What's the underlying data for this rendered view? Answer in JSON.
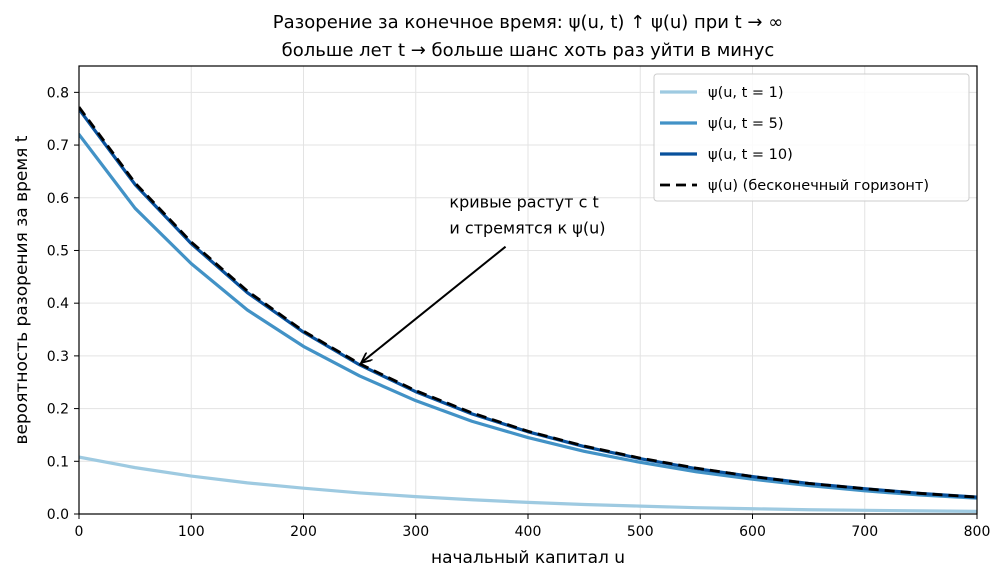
{
  "chart_data": {
    "type": "line",
    "title_line1": "Разорение за конечное время: ψ(u, t) ↑ ψ(u) при t → ∞",
    "title_line2": "больше лет t → больше шанс хоть раз уйти в минус",
    "xlabel": "начальный капитал u",
    "ylabel": "вероятность разорения за время t",
    "xlim": [
      0,
      800
    ],
    "ylim": [
      0,
      0.85
    ],
    "xticks": [
      0,
      100,
      200,
      300,
      400,
      500,
      600,
      700,
      800
    ],
    "yticks": [
      0.0,
      0.1,
      0.2,
      0.3,
      0.4,
      0.5,
      0.6,
      0.7,
      0.8
    ],
    "grid": true,
    "legend_position": "top-right",
    "x": [
      0,
      50,
      100,
      150,
      200,
      250,
      300,
      350,
      400,
      450,
      500,
      550,
      600,
      650,
      700,
      750,
      800
    ],
    "series": [
      {
        "name": "ψ(u, t = 1)",
        "color": "#9ecae1",
        "dash": "solid",
        "values": [
          0.108,
          0.088,
          0.072,
          0.059,
          0.049,
          0.04,
          0.033,
          0.027,
          0.022,
          0.018,
          0.015,
          0.012,
          0.01,
          0.008,
          0.007,
          0.006,
          0.005
        ]
      },
      {
        "name": "ψ(u, t = 5)",
        "color": "#4292c6",
        "dash": "solid",
        "values": [
          0.72,
          0.58,
          0.475,
          0.387,
          0.318,
          0.262,
          0.215,
          0.176,
          0.145,
          0.119,
          0.098,
          0.08,
          0.066,
          0.054,
          0.044,
          0.036,
          0.03
        ]
      },
      {
        "name": "ψ(u, t = 10)",
        "color": "#08519c",
        "dash": "solid",
        "values": [
          0.768,
          0.625,
          0.513,
          0.42,
          0.345,
          0.283,
          0.232,
          0.19,
          0.156,
          0.128,
          0.105,
          0.086,
          0.071,
          0.058,
          0.048,
          0.039,
          0.032
        ]
      },
      {
        "name": "ψ(u) (бесконечный горизонт)",
        "color": "#000000",
        "dash": "dashed",
        "values": [
          0.772,
          0.628,
          0.516,
          0.423,
          0.347,
          0.285,
          0.234,
          0.192,
          0.157,
          0.129,
          0.106,
          0.087,
          0.071,
          0.058,
          0.048,
          0.039,
          0.032
        ]
      }
    ],
    "annotation": {
      "line1": "кривые растут с t",
      "line2": "и стремятся к ψ(u)",
      "text_at": [
        330,
        0.53
      ],
      "arrow_from": [
        380,
        0.53
      ],
      "arrow_to": [
        252,
        0.288
      ]
    }
  }
}
